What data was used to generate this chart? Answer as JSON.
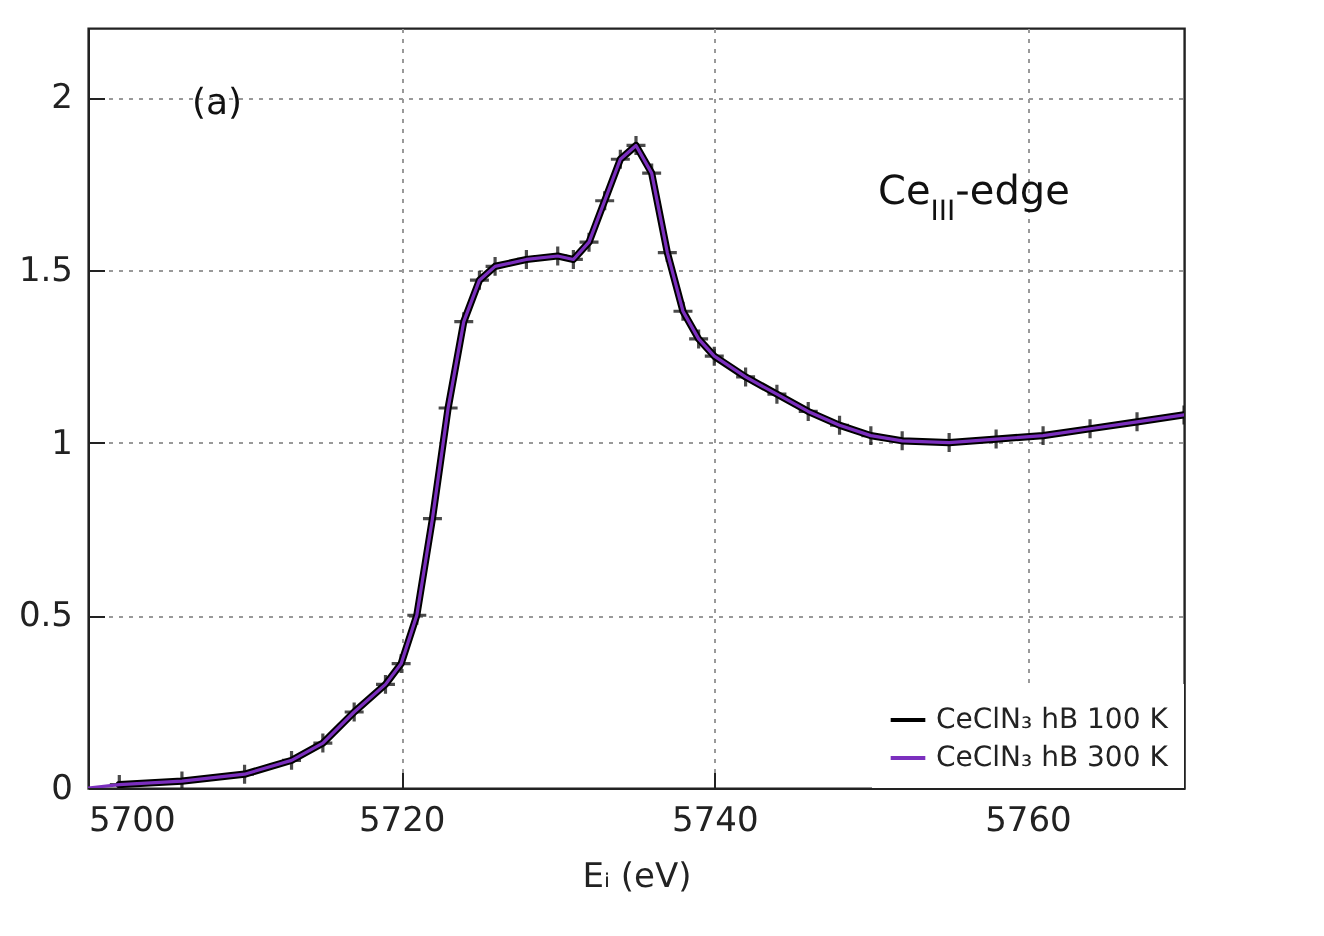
{
  "chart_data": {
    "type": "line",
    "xlabel": "Eᵢ (eV)",
    "annotations": [
      "(a)",
      "Ce$_{III}$-edge"
    ],
    "series": [
      {
        "name": "CeClN₃ hB 100 K",
        "color": "#000000",
        "marker": "cross",
        "x": [
          5702,
          5706,
          5710,
          5713,
          5715,
          5717,
          5719,
          5720,
          5721,
          5722,
          5723,
          5724,
          5725,
          5726,
          5728,
          5730,
          5731,
          5732,
          5733,
          5734,
          5735,
          5736,
          5737,
          5738,
          5739,
          5740,
          5742,
          5744,
          5746,
          5748,
          5750,
          5752,
          5755,
          5758,
          5761,
          5764,
          5767,
          5770
        ],
        "values": [
          0.01,
          0.02,
          0.04,
          0.08,
          0.13,
          0.22,
          0.3,
          0.36,
          0.5,
          0.78,
          1.1,
          1.35,
          1.47,
          1.51,
          1.53,
          1.54,
          1.53,
          1.58,
          1.7,
          1.82,
          1.86,
          1.78,
          1.55,
          1.38,
          1.3,
          1.25,
          1.19,
          1.14,
          1.09,
          1.05,
          1.02,
          1.005,
          1.0,
          1.01,
          1.02,
          1.04,
          1.06,
          1.08
        ]
      },
      {
        "name": "CeClN₃ hB 300 K",
        "color": "#7b2fbe",
        "marker": "none",
        "x": [
          5700,
          5702,
          5706,
          5710,
          5713,
          5715,
          5717,
          5719,
          5720,
          5721,
          5722,
          5723,
          5724,
          5725,
          5726,
          5728,
          5730,
          5731,
          5732,
          5733,
          5734,
          5735,
          5736,
          5737,
          5738,
          5739,
          5740,
          5742,
          5744,
          5746,
          5748,
          5750,
          5752,
          5755,
          5758,
          5761,
          5764,
          5767,
          5770
        ],
        "values": [
          0.0,
          0.01,
          0.02,
          0.04,
          0.08,
          0.13,
          0.22,
          0.3,
          0.36,
          0.5,
          0.78,
          1.1,
          1.35,
          1.47,
          1.51,
          1.53,
          1.54,
          1.53,
          1.58,
          1.7,
          1.82,
          1.86,
          1.78,
          1.55,
          1.38,
          1.3,
          1.25,
          1.19,
          1.14,
          1.09,
          1.05,
          1.02,
          1.005,
          1.0,
          1.01,
          1.02,
          1.04,
          1.06,
          1.08
        ]
      }
    ],
    "xlim": [
      5700,
      5770
    ],
    "xticks": [
      5700,
      5720,
      5740,
      5760
    ],
    "ylim": [
      0,
      2.2
    ],
    "yticks": [
      0,
      0.5,
      1,
      1.5,
      2
    ],
    "grid": true,
    "legend": "bottom right",
    "line_style": "solid"
  }
}
